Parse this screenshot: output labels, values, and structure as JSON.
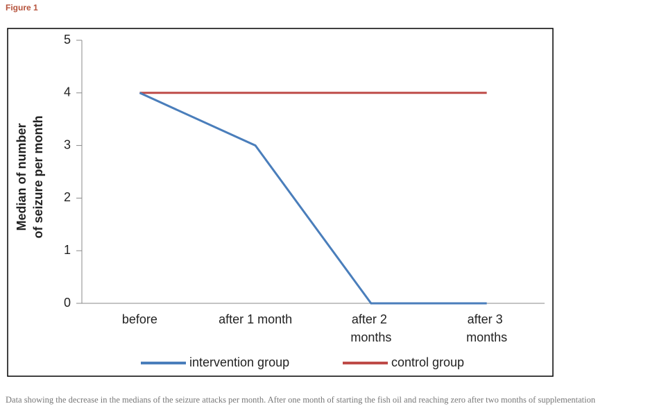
{
  "figure_label": "Figure 1",
  "caption": "Data showing the decrease in the medians of the seizure attacks per month. After one month of starting the fish oil and reaching zero after two months of supplementation",
  "chart_data": {
    "type": "line",
    "y_label": [
      "Median of number",
      "of seizure per month"
    ],
    "categories": [
      "before",
      "after 1 month",
      "after 2 months",
      "after 3 months"
    ],
    "series": [
      {
        "name": "intervention group",
        "color": "#4a7ebb",
        "values": [
          4,
          3,
          0,
          0
        ]
      },
      {
        "name": "control group",
        "color": "#be4b48",
        "values": [
          4,
          4,
          4,
          4
        ]
      }
    ],
    "ylim": [
      0,
      5
    ],
    "yticks": [
      0,
      1,
      2,
      3,
      4,
      5
    ],
    "grid": false,
    "legend": "bottom"
  }
}
